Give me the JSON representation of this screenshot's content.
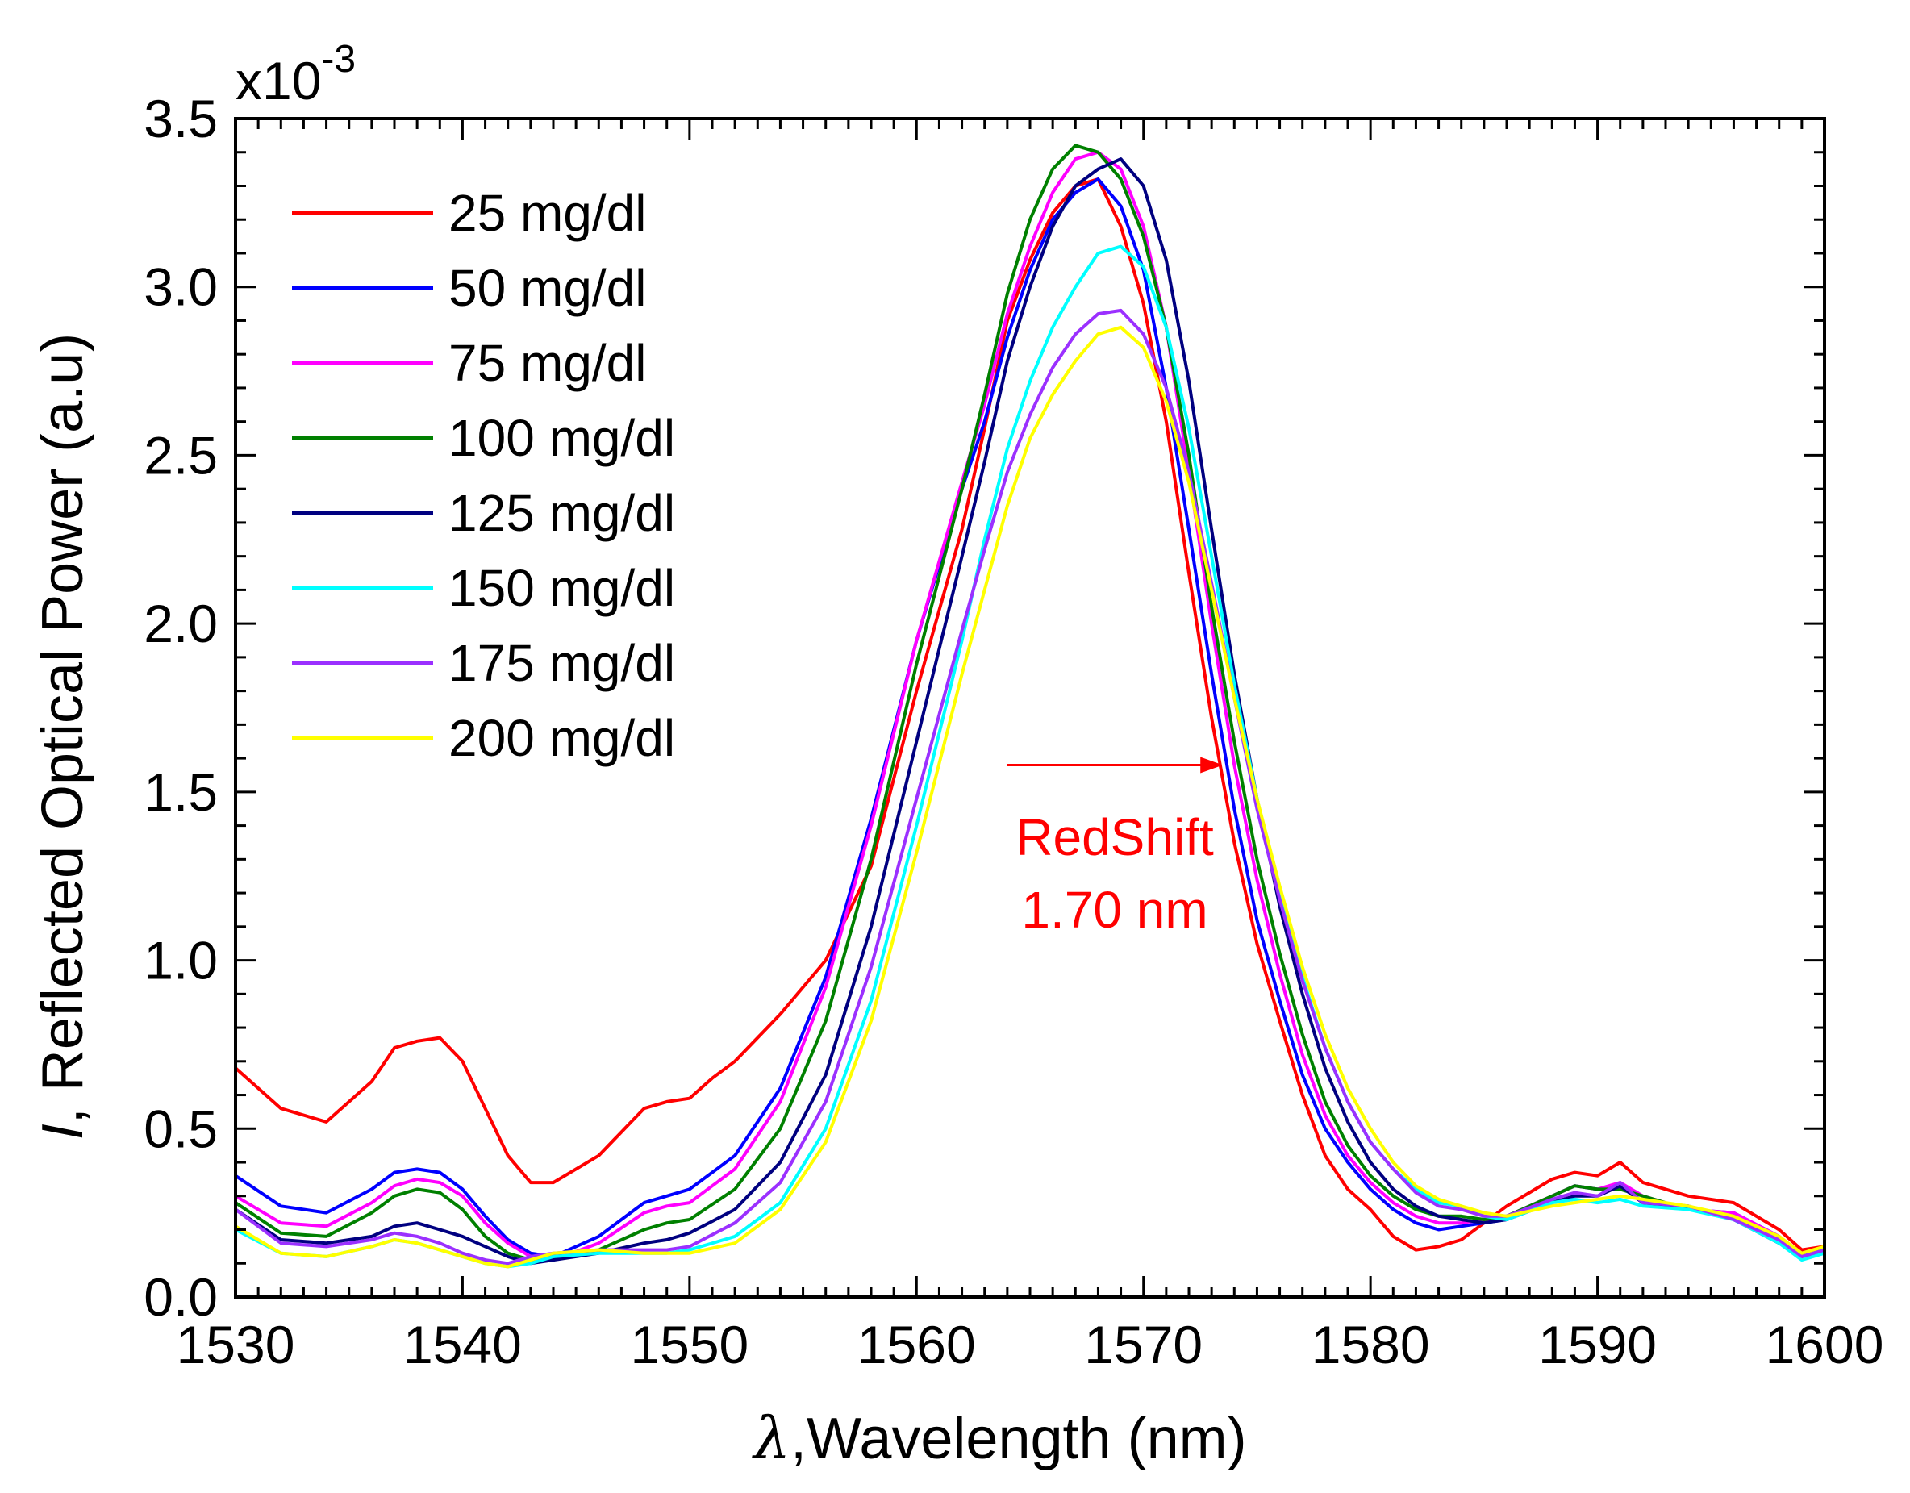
{
  "chart_data": {
    "type": "line",
    "title": "",
    "xlabel": "λ,Wavelength (nm)",
    "xlabel_symbol": "λ",
    "xlabel_text": ",Wavelength (nm)",
    "ylabel": "I, Reflected Optical Power (a.u)",
    "ylabel_symbol": "I",
    "ylabel_text": ", Reflected Optical Power (a.u)",
    "y_multiplier": "x10",
    "y_multiplier_exp": "-3",
    "xlim": [
      1530,
      1600
    ],
    "ylim": [
      0.0,
      3.5
    ],
    "x_ticks": [
      1530,
      1540,
      1550,
      1560,
      1570,
      1580,
      1590,
      1600
    ],
    "x_tick_labels": [
      "1530",
      "1540",
      "1550",
      "1560",
      "1570",
      "1580",
      "1590",
      "1600"
    ],
    "y_ticks": [
      0.0,
      0.5,
      1.0,
      1.5,
      2.0,
      2.5,
      3.0,
      3.5
    ],
    "y_tick_labels": [
      "0.0",
      "0.5",
      "1.0",
      "1.5",
      "2.0",
      "2.5",
      "3.0",
      "3.5"
    ],
    "grid": false,
    "legend_position": "top-left",
    "annotations": [
      {
        "text": "RedShift",
        "color": "#ff0000"
      },
      {
        "text": "1.70 nm",
        "color": "#ff0000"
      }
    ],
    "arrow": {
      "from": [
        1564,
        1.58
      ],
      "to": [
        1573.5,
        1.58
      ],
      "color": "#ff0000"
    },
    "series": [
      {
        "name": "25 mg/dl",
        "color": "#ff0000",
        "x": [
          1530,
          1532,
          1534,
          1536,
          1537,
          1538,
          1539,
          1540,
          1541,
          1542,
          1543,
          1544,
          1546,
          1548,
          1549,
          1550,
          1551,
          1552,
          1554,
          1556,
          1558,
          1560,
          1562,
          1563,
          1564,
          1565,
          1566,
          1567,
          1568,
          1569,
          1570,
          1571,
          1572,
          1573,
          1574,
          1575,
          1576,
          1577,
          1578,
          1579,
          1580,
          1581,
          1582,
          1583,
          1584,
          1585,
          1586,
          1588,
          1589,
          1590,
          1591,
          1592,
          1594,
          1596,
          1598,
          1599,
          1600
        ],
        "values": [
          0.68,
          0.56,
          0.52,
          0.64,
          0.74,
          0.76,
          0.77,
          0.7,
          0.56,
          0.42,
          0.34,
          0.34,
          0.42,
          0.56,
          0.58,
          0.59,
          0.65,
          0.7,
          0.84,
          1.0,
          1.28,
          1.8,
          2.28,
          2.58,
          2.9,
          3.08,
          3.22,
          3.3,
          3.32,
          3.18,
          2.95,
          2.6,
          2.15,
          1.72,
          1.35,
          1.05,
          0.82,
          0.6,
          0.42,
          0.32,
          0.26,
          0.18,
          0.14,
          0.15,
          0.17,
          0.22,
          0.27,
          0.35,
          0.37,
          0.36,
          0.4,
          0.34,
          0.3,
          0.28,
          0.2,
          0.14,
          0.15
        ]
      },
      {
        "name": "50 mg/dl",
        "color": "#0000ff",
        "x": [
          1530,
          1532,
          1534,
          1536,
          1537,
          1538,
          1539,
          1540,
          1541,
          1542,
          1543,
          1544,
          1546,
          1548,
          1549,
          1550,
          1552,
          1554,
          1556,
          1558,
          1560,
          1562,
          1563,
          1564,
          1565,
          1566,
          1567,
          1568,
          1569,
          1570,
          1571,
          1572,
          1573,
          1574,
          1575,
          1576,
          1577,
          1578,
          1579,
          1580,
          1581,
          1582,
          1583,
          1584,
          1585,
          1586,
          1588,
          1589,
          1590,
          1591,
          1592,
          1594,
          1596,
          1598,
          1599,
          1600
        ],
        "values": [
          0.36,
          0.27,
          0.25,
          0.32,
          0.37,
          0.38,
          0.37,
          0.32,
          0.24,
          0.17,
          0.13,
          0.12,
          0.18,
          0.28,
          0.3,
          0.32,
          0.42,
          0.62,
          0.95,
          1.42,
          1.95,
          2.4,
          2.6,
          2.85,
          3.05,
          3.2,
          3.28,
          3.32,
          3.24,
          3.05,
          2.7,
          2.28,
          1.85,
          1.45,
          1.12,
          0.88,
          0.66,
          0.5,
          0.4,
          0.32,
          0.26,
          0.22,
          0.2,
          0.21,
          0.22,
          0.23,
          0.3,
          0.33,
          0.32,
          0.33,
          0.28,
          0.26,
          0.25,
          0.18,
          0.12,
          0.14
        ]
      },
      {
        "name": "75 mg/dl",
        "color": "#ff00ff",
        "x": [
          1530,
          1532,
          1534,
          1536,
          1537,
          1538,
          1539,
          1540,
          1541,
          1542,
          1543,
          1544,
          1546,
          1548,
          1549,
          1550,
          1552,
          1554,
          1556,
          1558,
          1560,
          1562,
          1563,
          1564,
          1565,
          1566,
          1567,
          1568,
          1569,
          1570,
          1571,
          1572,
          1573,
          1574,
          1575,
          1576,
          1577,
          1578,
          1579,
          1580,
          1581,
          1582,
          1583,
          1584,
          1585,
          1586,
          1588,
          1589,
          1590,
          1591,
          1592,
          1594,
          1596,
          1598,
          1599,
          1600
        ],
        "values": [
          0.3,
          0.22,
          0.21,
          0.28,
          0.33,
          0.35,
          0.34,
          0.3,
          0.22,
          0.16,
          0.12,
          0.11,
          0.16,
          0.25,
          0.27,
          0.28,
          0.38,
          0.58,
          0.92,
          1.4,
          1.95,
          2.42,
          2.65,
          2.92,
          3.12,
          3.28,
          3.38,
          3.4,
          3.35,
          3.18,
          2.88,
          2.45,
          2.0,
          1.58,
          1.24,
          0.96,
          0.72,
          0.54,
          0.42,
          0.34,
          0.28,
          0.24,
          0.22,
          0.22,
          0.23,
          0.24,
          0.3,
          0.33,
          0.32,
          0.34,
          0.3,
          0.26,
          0.25,
          0.18,
          0.12,
          0.14
        ]
      },
      {
        "name": "100 mg/dl",
        "color": "#008000",
        "x": [
          1530,
          1532,
          1534,
          1536,
          1537,
          1538,
          1539,
          1540,
          1541,
          1542,
          1543,
          1544,
          1546,
          1548,
          1549,
          1550,
          1552,
          1554,
          1556,
          1558,
          1560,
          1562,
          1563,
          1564,
          1565,
          1566,
          1567,
          1568,
          1569,
          1570,
          1571,
          1572,
          1573,
          1574,
          1575,
          1576,
          1577,
          1578,
          1579,
          1580,
          1581,
          1582,
          1583,
          1584,
          1585,
          1586,
          1588,
          1589,
          1590,
          1591,
          1592,
          1594,
          1596,
          1598,
          1599,
          1600
        ],
        "values": [
          0.28,
          0.19,
          0.18,
          0.25,
          0.3,
          0.32,
          0.31,
          0.26,
          0.18,
          0.13,
          0.11,
          0.11,
          0.14,
          0.2,
          0.22,
          0.23,
          0.32,
          0.5,
          0.82,
          1.3,
          1.88,
          2.4,
          2.68,
          2.98,
          3.2,
          3.35,
          3.42,
          3.4,
          3.32,
          3.15,
          2.88,
          2.5,
          2.05,
          1.65,
          1.3,
          1.02,
          0.78,
          0.58,
          0.45,
          0.36,
          0.3,
          0.26,
          0.24,
          0.24,
          0.23,
          0.24,
          0.3,
          0.33,
          0.32,
          0.32,
          0.3,
          0.26,
          0.24,
          0.17,
          0.12,
          0.14
        ]
      },
      {
        "name": "125 mg/dl",
        "color": "#000080",
        "x": [
          1530,
          1532,
          1534,
          1536,
          1537,
          1538,
          1539,
          1540,
          1541,
          1542,
          1543,
          1544,
          1546,
          1548,
          1549,
          1550,
          1552,
          1554,
          1556,
          1558,
          1560,
          1562,
          1563,
          1564,
          1565,
          1566,
          1567,
          1568,
          1569,
          1570,
          1571,
          1572,
          1573,
          1574,
          1575,
          1576,
          1577,
          1578,
          1579,
          1580,
          1581,
          1582,
          1583,
          1584,
          1585,
          1586,
          1588,
          1589,
          1590,
          1591,
          1592,
          1594,
          1596,
          1598,
          1599,
          1600
        ],
        "values": [
          0.26,
          0.17,
          0.16,
          0.18,
          0.21,
          0.22,
          0.2,
          0.18,
          0.15,
          0.12,
          0.1,
          0.11,
          0.13,
          0.16,
          0.17,
          0.19,
          0.26,
          0.4,
          0.66,
          1.1,
          1.65,
          2.2,
          2.48,
          2.78,
          3.0,
          3.18,
          3.3,
          3.35,
          3.38,
          3.3,
          3.08,
          2.72,
          2.28,
          1.85,
          1.48,
          1.16,
          0.9,
          0.68,
          0.52,
          0.4,
          0.32,
          0.27,
          0.24,
          0.23,
          0.22,
          0.23,
          0.28,
          0.3,
          0.3,
          0.33,
          0.28,
          0.27,
          0.23,
          0.16,
          0.12,
          0.14
        ]
      },
      {
        "name": "150 mg/dl",
        "color": "#00ffff",
        "x": [
          1530,
          1532,
          1534,
          1536,
          1537,
          1538,
          1539,
          1540,
          1541,
          1542,
          1543,
          1544,
          1546,
          1548,
          1549,
          1550,
          1552,
          1554,
          1556,
          1558,
          1560,
          1562,
          1563,
          1564,
          1565,
          1566,
          1567,
          1568,
          1569,
          1570,
          1571,
          1572,
          1573,
          1574,
          1575,
          1576,
          1577,
          1578,
          1579,
          1580,
          1581,
          1582,
          1583,
          1584,
          1585,
          1586,
          1588,
          1589,
          1590,
          1591,
          1592,
          1594,
          1596,
          1598,
          1599,
          1600
        ],
        "values": [
          0.2,
          0.13,
          0.12,
          0.15,
          0.17,
          0.16,
          0.14,
          0.12,
          0.1,
          0.09,
          0.1,
          0.12,
          0.13,
          0.13,
          0.13,
          0.14,
          0.18,
          0.28,
          0.5,
          0.88,
          1.4,
          1.95,
          2.25,
          2.52,
          2.72,
          2.88,
          3.0,
          3.1,
          3.12,
          3.06,
          2.88,
          2.58,
          2.2,
          1.82,
          1.48,
          1.2,
          0.95,
          0.74,
          0.58,
          0.46,
          0.38,
          0.32,
          0.28,
          0.27,
          0.24,
          0.23,
          0.28,
          0.29,
          0.28,
          0.29,
          0.27,
          0.26,
          0.23,
          0.16,
          0.11,
          0.13
        ]
      },
      {
        "name": "175 mg/dl",
        "color": "#9b30ff",
        "x": [
          1530,
          1532,
          1534,
          1536,
          1537,
          1538,
          1539,
          1540,
          1541,
          1542,
          1543,
          1544,
          1546,
          1548,
          1549,
          1550,
          1552,
          1554,
          1556,
          1558,
          1560,
          1562,
          1563,
          1564,
          1565,
          1566,
          1567,
          1568,
          1569,
          1570,
          1571,
          1572,
          1573,
          1574,
          1575,
          1576,
          1577,
          1578,
          1579,
          1580,
          1581,
          1582,
          1583,
          1584,
          1585,
          1586,
          1588,
          1589,
          1590,
          1591,
          1592,
          1594,
          1596,
          1598,
          1599,
          1600
        ],
        "values": [
          0.26,
          0.16,
          0.15,
          0.17,
          0.19,
          0.18,
          0.16,
          0.13,
          0.11,
          0.1,
          0.12,
          0.13,
          0.14,
          0.14,
          0.14,
          0.15,
          0.22,
          0.34,
          0.58,
          0.98,
          1.48,
          1.98,
          2.22,
          2.45,
          2.62,
          2.76,
          2.86,
          2.92,
          2.93,
          2.86,
          2.7,
          2.45,
          2.12,
          1.78,
          1.45,
          1.18,
          0.94,
          0.74,
          0.58,
          0.46,
          0.38,
          0.31,
          0.27,
          0.26,
          0.24,
          0.24,
          0.29,
          0.31,
          0.3,
          0.34,
          0.28,
          0.27,
          0.23,
          0.17,
          0.12,
          0.14
        ]
      },
      {
        "name": "200 mg/dl",
        "color": "#ffff00",
        "x": [
          1530,
          1532,
          1534,
          1536,
          1537,
          1538,
          1539,
          1540,
          1541,
          1542,
          1543,
          1544,
          1546,
          1548,
          1549,
          1550,
          1552,
          1554,
          1556,
          1558,
          1560,
          1562,
          1563,
          1564,
          1565,
          1566,
          1567,
          1568,
          1569,
          1570,
          1571,
          1572,
          1573,
          1574,
          1575,
          1576,
          1577,
          1578,
          1579,
          1580,
          1581,
          1582,
          1583,
          1584,
          1585,
          1586,
          1588,
          1589,
          1590,
          1591,
          1592,
          1594,
          1596,
          1598,
          1599,
          1600
        ],
        "values": [
          0.21,
          0.13,
          0.12,
          0.15,
          0.17,
          0.16,
          0.14,
          0.12,
          0.1,
          0.09,
          0.11,
          0.13,
          0.14,
          0.13,
          0.13,
          0.13,
          0.16,
          0.26,
          0.46,
          0.82,
          1.32,
          1.85,
          2.1,
          2.35,
          2.55,
          2.68,
          2.78,
          2.86,
          2.88,
          2.82,
          2.66,
          2.42,
          2.1,
          1.78,
          1.48,
          1.22,
          0.98,
          0.78,
          0.62,
          0.5,
          0.4,
          0.33,
          0.29,
          0.27,
          0.25,
          0.24,
          0.27,
          0.28,
          0.29,
          0.3,
          0.29,
          0.27,
          0.24,
          0.18,
          0.13,
          0.15
        ]
      }
    ]
  }
}
